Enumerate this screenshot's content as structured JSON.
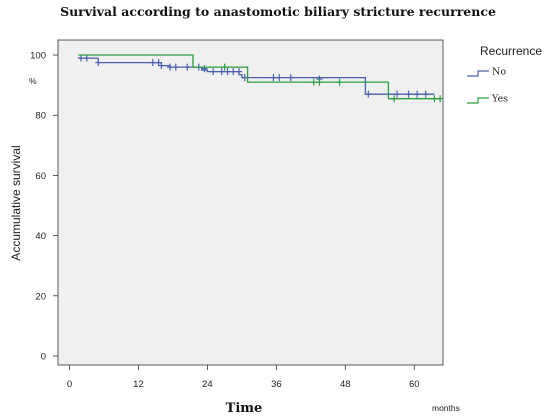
{
  "chart_data": {
    "type": "line",
    "title": "Survival according to anastomotic biliary stricture recurrence",
    "xlabel": "Time",
    "x_unit": "months",
    "ylabel": "Accumulative survival",
    "y_unit": "%",
    "xlim": [
      -2,
      65
    ],
    "ylim": [
      -3,
      105
    ],
    "x_ticks": [
      0,
      12,
      24,
      36,
      48,
      60
    ],
    "y_ticks": [
      0,
      20,
      40,
      60,
      80,
      100
    ],
    "grid": false,
    "legend": {
      "title": "Recurrence",
      "position": "right"
    },
    "series": [
      {
        "name": "No",
        "color": "#4a5fb0",
        "step": [
          [
            1.5,
            99
          ],
          [
            5,
            99
          ],
          [
            5,
            97.5
          ],
          [
            16,
            97.5
          ],
          [
            16,
            96.5
          ],
          [
            17.5,
            96.5
          ],
          [
            17.5,
            96
          ],
          [
            23,
            96
          ],
          [
            23,
            95
          ],
          [
            24,
            95
          ],
          [
            24,
            94.5
          ],
          [
            29.5,
            94.5
          ],
          [
            29.5,
            93.5
          ],
          [
            30,
            93.5
          ],
          [
            30,
            92.5
          ],
          [
            51.5,
            92.5
          ],
          [
            51.5,
            87
          ],
          [
            63.5,
            87
          ]
        ],
        "censored": [
          [
            2,
            99
          ],
          [
            3,
            99
          ],
          [
            5,
            97.5
          ],
          [
            14.5,
            97.5
          ],
          [
            15.5,
            97.5
          ],
          [
            16,
            96.5
          ],
          [
            17.5,
            96
          ],
          [
            18.5,
            96
          ],
          [
            20.5,
            96
          ],
          [
            22.5,
            96
          ],
          [
            23.5,
            95.5
          ],
          [
            25,
            94.5
          ],
          [
            26.5,
            94.5
          ],
          [
            27.5,
            94.5
          ],
          [
            28.5,
            94.5
          ],
          [
            29.5,
            94.5
          ],
          [
            30.5,
            92.5
          ],
          [
            35.5,
            92.5
          ],
          [
            36.5,
            92.5
          ],
          [
            38.5,
            92.5
          ],
          [
            43.5,
            92
          ],
          [
            52,
            87
          ],
          [
            57,
            87
          ],
          [
            59,
            87
          ],
          [
            60.5,
            87
          ],
          [
            62,
            87
          ]
        ]
      },
      {
        "name": "Yes",
        "color": "#2aa040",
        "step": [
          [
            1.5,
            100
          ],
          [
            21.5,
            100
          ],
          [
            21.5,
            96
          ],
          [
            31,
            96
          ],
          [
            31,
            91
          ],
          [
            55.5,
            91
          ],
          [
            55.5,
            85.5
          ],
          [
            64.5,
            85.5
          ]
        ],
        "censored": [
          [
            27,
            96
          ],
          [
            42.5,
            91
          ],
          [
            43.5,
            91
          ],
          [
            47,
            91
          ],
          [
            56.5,
            85.5
          ],
          [
            63.5,
            85.5
          ],
          [
            64.5,
            85.5
          ]
        ]
      }
    ]
  }
}
